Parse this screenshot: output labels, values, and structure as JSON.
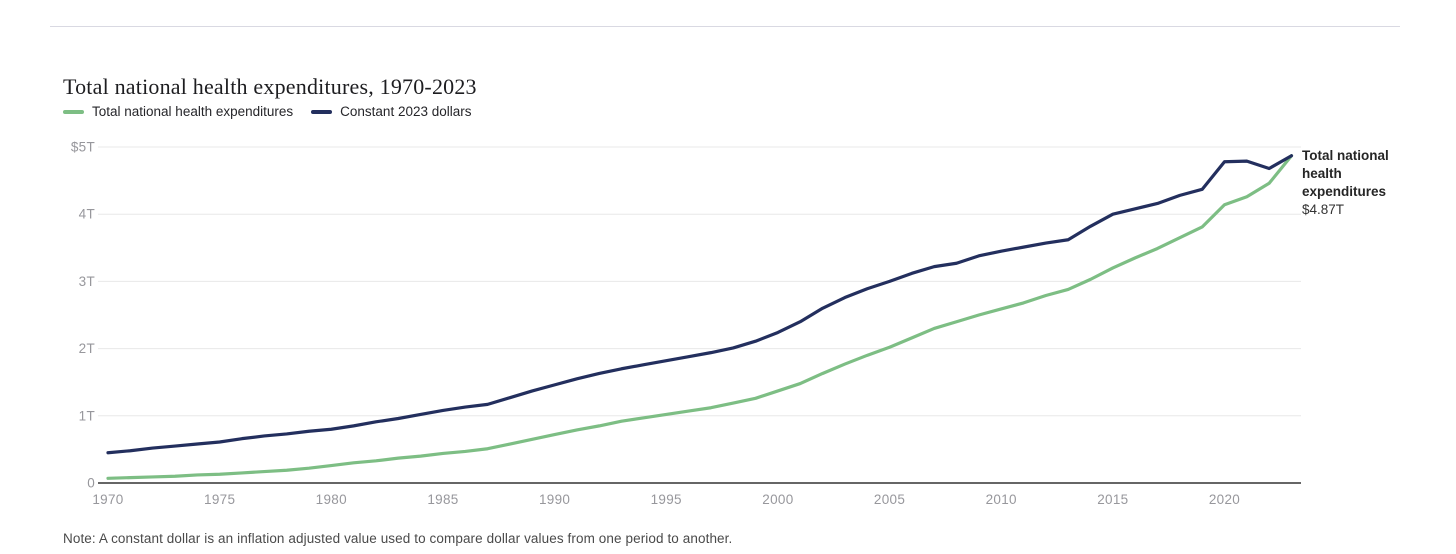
{
  "page": {
    "title": "Total national health expenditures, 1970-2023",
    "note": "Note: A constant dollar is an inflation adjusted value used to compare dollar values from one period to another."
  },
  "legend": {
    "items": [
      {
        "label": "Total national health expenditures",
        "color": "#7dbe84"
      },
      {
        "label": "Constant 2023 dollars",
        "color": "#232f5e"
      }
    ]
  },
  "annotation": {
    "label": "Total national health expenditures",
    "value": "$4.87T"
  },
  "colors": {
    "green_series": "#7dbe84",
    "navy_series": "#232f5e",
    "gridline": "#e8e8e8",
    "axis": "#333333",
    "tick_label": "#97979c",
    "divider": "#d9d9e2"
  },
  "chart_data": {
    "type": "line",
    "title": "Total national health expenditures, 1970-2023",
    "xlabel": "",
    "ylabel": "",
    "y_unit": "trillions of US dollars",
    "ylim": [
      0,
      5
    ],
    "x_range": [
      1970,
      2023
    ],
    "grid": true,
    "legend_position": "top-left",
    "x_ticks": [
      1970,
      1975,
      1980,
      1985,
      1990,
      1995,
      2000,
      2005,
      2010,
      2015,
      2020
    ],
    "y_ticks": [
      {
        "value": 0,
        "label": "0"
      },
      {
        "value": 1,
        "label": "1T"
      },
      {
        "value": 2,
        "label": "2T"
      },
      {
        "value": 3,
        "label": "3T"
      },
      {
        "value": 4,
        "label": "4T"
      },
      {
        "value": 5,
        "label": "$5T"
      }
    ],
    "years": [
      1970,
      1971,
      1972,
      1973,
      1974,
      1975,
      1976,
      1977,
      1978,
      1979,
      1980,
      1981,
      1982,
      1983,
      1984,
      1985,
      1986,
      1987,
      1988,
      1989,
      1990,
      1991,
      1992,
      1993,
      1994,
      1995,
      1996,
      1997,
      1998,
      1999,
      2000,
      2001,
      2002,
      2003,
      2004,
      2005,
      2006,
      2007,
      2008,
      2009,
      2010,
      2011,
      2012,
      2013,
      2014,
      2015,
      2016,
      2017,
      2018,
      2019,
      2020,
      2021,
      2022,
      2023
    ],
    "series": [
      {
        "name": "Total national health expenditures",
        "color": "#7dbe84",
        "values": [
          0.07,
          0.08,
          0.09,
          0.1,
          0.12,
          0.13,
          0.15,
          0.17,
          0.19,
          0.22,
          0.26,
          0.3,
          0.33,
          0.37,
          0.4,
          0.44,
          0.47,
          0.51,
          0.58,
          0.65,
          0.72,
          0.79,
          0.85,
          0.92,
          0.97,
          1.02,
          1.07,
          1.12,
          1.19,
          1.26,
          1.37,
          1.48,
          1.63,
          1.77,
          1.9,
          2.02,
          2.16,
          2.3,
          2.4,
          2.5,
          2.59,
          2.68,
          2.79,
          2.88,
          3.03,
          3.2,
          3.35,
          3.49,
          3.65,
          3.81,
          4.14,
          4.26,
          4.46,
          4.87
        ]
      },
      {
        "name": "Constant 2023 dollars",
        "color": "#232f5e",
        "values": [
          0.45,
          0.48,
          0.52,
          0.55,
          0.58,
          0.61,
          0.66,
          0.7,
          0.73,
          0.77,
          0.8,
          0.85,
          0.91,
          0.96,
          1.02,
          1.08,
          1.13,
          1.17,
          1.27,
          1.37,
          1.46,
          1.55,
          1.63,
          1.7,
          1.76,
          1.82,
          1.88,
          1.94,
          2.01,
          2.11,
          2.24,
          2.4,
          2.6,
          2.76,
          2.89,
          3.0,
          3.12,
          3.22,
          3.27,
          3.38,
          3.45,
          3.51,
          3.57,
          3.62,
          3.82,
          4.0,
          4.08,
          4.16,
          4.28,
          4.37,
          4.78,
          4.79,
          4.68,
          4.87
        ]
      }
    ],
    "end_label": {
      "series": "Total national health expenditures",
      "value_label": "$4.87T",
      "value": 4.87
    }
  }
}
